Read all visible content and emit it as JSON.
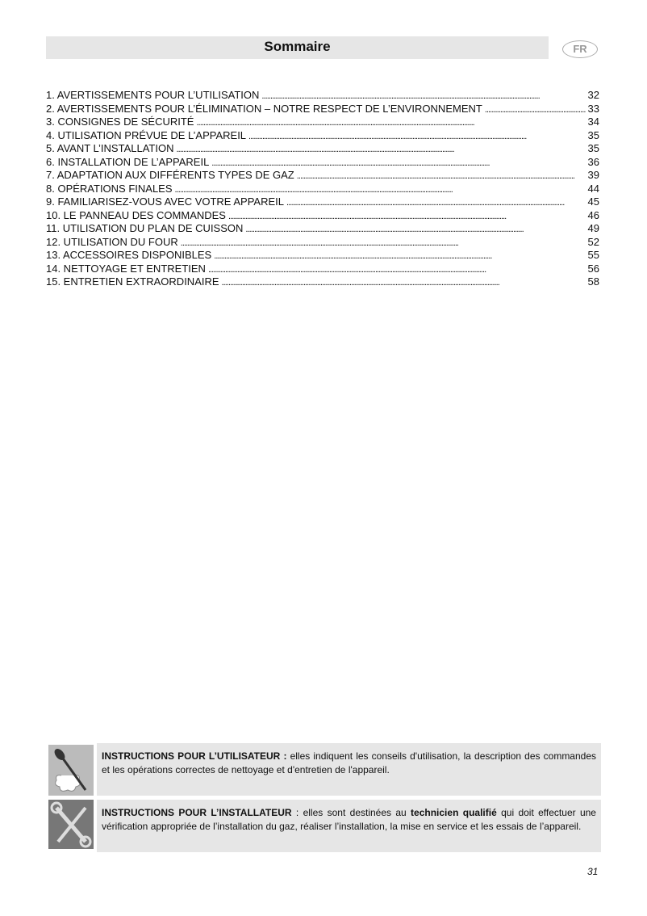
{
  "header": {
    "title": "Sommaire",
    "lang_badge": "FR"
  },
  "toc": [
    {
      "label": "1. AVERTISSEMENTS POUR L’UTILISATION",
      "page": "32"
    },
    {
      "label": "2. AVERTISSEMENTS POUR L’ÉLIMINATION – NOTRE RESPECT DE L’ENVIRONNEMENT",
      "page": "33"
    },
    {
      "label": "3. CONSIGNES DE SÉCURITÉ",
      "page": "34"
    },
    {
      "label": "4. UTILISATION PRÉVUE DE L’APPAREIL",
      "page": "35"
    },
    {
      "label": "5. AVANT L’INSTALLATION",
      "page": "35"
    },
    {
      "label": "6. INSTALLATION DE L’APPAREIL",
      "page": "36"
    },
    {
      "label": "7. ADAPTATION AUX DIFFÉRENTS TYPES DE GAZ",
      "page": "39"
    },
    {
      "label": "8. OPÉRATIONS FINALES",
      "page": "44"
    },
    {
      "label": "9. FAMILIARISEZ-VOUS AVEC VOTRE APPAREIL",
      "page": "45"
    },
    {
      "label": "10. LE PANNEAU DES COMMANDES",
      "page": "46"
    },
    {
      "label": "11. UTILISATION DU PLAN DE CUISSON",
      "page": "49"
    },
    {
      "label": "12. UTILISATION DU FOUR",
      "page": "52"
    },
    {
      "label": "13. ACCESSOIRES DISPONIBLES",
      "page": "55"
    },
    {
      "label": "14. NETTOYAGE ET ENTRETIEN",
      "page": "56"
    },
    {
      "label": "15. ENTRETIEN EXTRAORDINAIRE",
      "page": "58"
    }
  ],
  "notes": {
    "user": {
      "icon": "spoon-chef-hat-icon",
      "title": "INSTRUCTIONS POUR L’UTILISATEUR :",
      "text": " elles indiquent les conseils d'utilisation, la description des commandes et les opérations correctes de nettoyage et d'entretien de l'appareil."
    },
    "installer": {
      "icon": "wrench-screwdriver-icon",
      "title": "INSTRUCTIONS POUR L’INSTALLATEUR",
      "text1": " : elles sont destinées au ",
      "bold": "technicien qualifié",
      "text2": " qui doit effectuer une vérification appropriée de l’installation du gaz, réaliser l’installation, la mise en service et les essais de l’appareil."
    }
  },
  "page_number": "31"
}
